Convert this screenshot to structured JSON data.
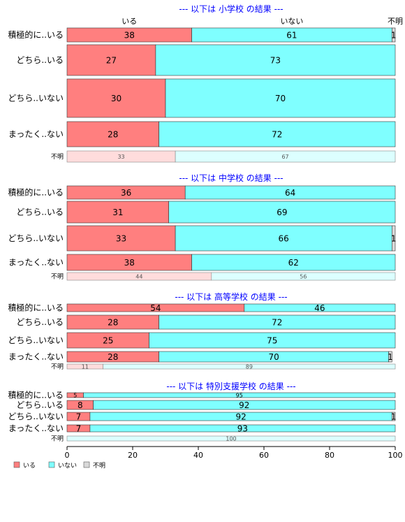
{
  "colors": {
    "iru": "#ff7f7f",
    "inai": "#7fffff",
    "fumei": "#d9d9d9",
    "title": "#0000ff",
    "border": "#333333"
  },
  "top_labels": {
    "iru": "いる",
    "inai": "いない",
    "fumei": "不明"
  },
  "chart_data": {
    "type": "bar",
    "orientation": "horizontal",
    "stacked": true,
    "xlim": [
      0,
      100
    ],
    "xticks": [
      0,
      20,
      40,
      60,
      80,
      100
    ],
    "legend": {
      "placement": "bottom-left",
      "entries": [
        "いる",
        "いない",
        "不明"
      ]
    },
    "panels": [
      {
        "title": "--- 以下は 小学校 の結果 ---",
        "rows": [
          {
            "label": "積極的に..いる",
            "values": [
              38,
              61,
              1
            ],
            "faded": false
          },
          {
            "label": "どちら..いる",
            "values": [
              27,
              73,
              0
            ],
            "faded": false
          },
          {
            "label": "どちら..いない",
            "values": [
              30,
              70,
              0
            ],
            "faded": false
          },
          {
            "label": "まったく..ない",
            "values": [
              28,
              72,
              0
            ],
            "faded": false
          },
          {
            "label": "不明",
            "values": [
              33,
              67,
              0
            ],
            "faded": true
          }
        ]
      },
      {
        "title": "--- 以下は 中学校 の結果 ---",
        "rows": [
          {
            "label": "積極的に..いる",
            "values": [
              36,
              64,
              0
            ],
            "faded": false
          },
          {
            "label": "どちら..いる",
            "values": [
              31,
              69,
              0
            ],
            "faded": false
          },
          {
            "label": "どちら..いない",
            "values": [
              33,
              66,
              1
            ],
            "faded": false
          },
          {
            "label": "まったく..ない",
            "values": [
              38,
              62,
              0
            ],
            "faded": false
          },
          {
            "label": "不明",
            "values": [
              44,
              56,
              0
            ],
            "faded": true
          }
        ]
      },
      {
        "title": "--- 以下は 高等学校 の結果 ---",
        "rows": [
          {
            "label": "積極的に..いる",
            "values": [
              54,
              46,
              0
            ],
            "faded": false
          },
          {
            "label": "どちら..いる",
            "values": [
              28,
              72,
              0
            ],
            "faded": false
          },
          {
            "label": "どちら..いない",
            "values": [
              25,
              75,
              0
            ],
            "faded": false
          },
          {
            "label": "まったく..ない",
            "values": [
              28,
              70,
              1
            ],
            "faded": false
          },
          {
            "label": "不明",
            "values": [
              11,
              89,
              0
            ],
            "faded": true
          }
        ]
      },
      {
        "title": "--- 以下は 特別支援学校 の結果 ---",
        "rows": [
          {
            "label": "積極的に..いる",
            "values": [
              5,
              95,
              0
            ],
            "faded": false
          },
          {
            "label": "どちら..いる",
            "values": [
              8,
              92,
              0
            ],
            "faded": false
          },
          {
            "label": "どちら..いない",
            "values": [
              7,
              92,
              1
            ],
            "faded": false
          },
          {
            "label": "まったく..ない",
            "values": [
              7,
              93,
              0
            ],
            "faded": false
          },
          {
            "label": "不明",
            "values": [
              0,
              100,
              0
            ],
            "faded": true
          }
        ]
      }
    ]
  }
}
